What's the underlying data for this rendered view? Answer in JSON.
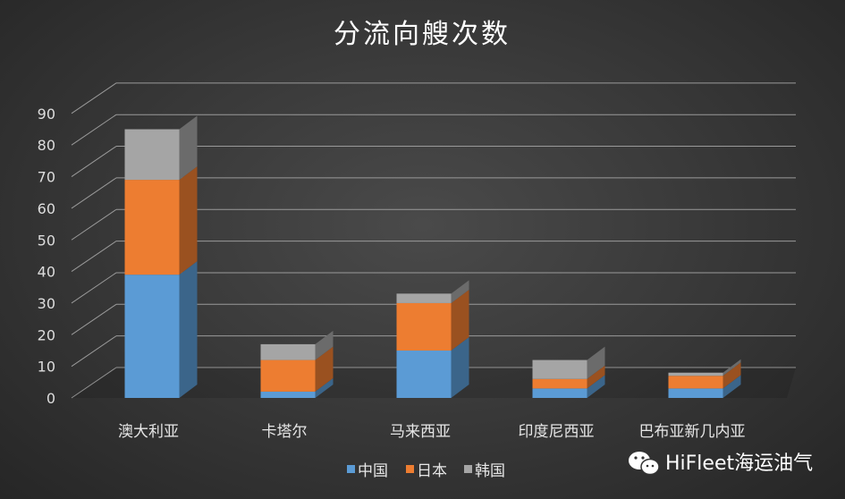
{
  "chart_data": {
    "type": "bar",
    "stacked": true,
    "three_d": true,
    "title": "分流向艘次数",
    "categories": [
      "澳大利亚",
      "卡塔尔",
      "马来西亚",
      "印度尼西亚",
      "巴布亚新几内亚"
    ],
    "series": [
      {
        "name": "中国",
        "color": "#5b9bd5",
        "values": [
          39,
          2,
          15,
          3,
          3
        ]
      },
      {
        "name": "日本",
        "color": "#ed7d31",
        "values": [
          30,
          10,
          15,
          3,
          4
        ]
      },
      {
        "name": "韩国",
        "color": "#a5a5a5",
        "values": [
          16,
          5,
          3,
          6,
          1
        ]
      }
    ],
    "ylim": [
      0,
      90
    ],
    "yticks": [
      0,
      10,
      20,
      30,
      40,
      50,
      60,
      70,
      80,
      90
    ],
    "grid": true,
    "legend_position": "bottom"
  },
  "watermark": {
    "icon": "wechat-icon",
    "text": "HiFleet海运油气"
  }
}
